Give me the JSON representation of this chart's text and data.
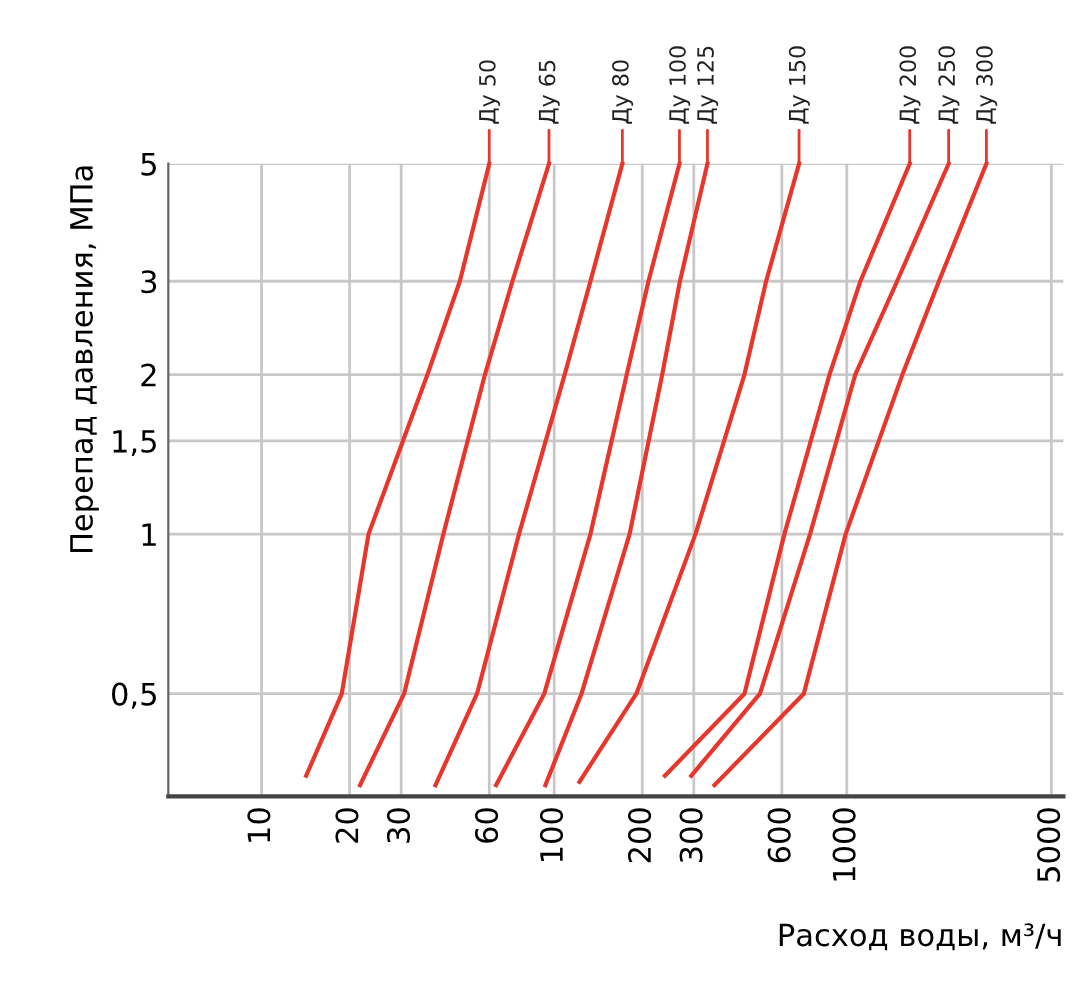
{
  "chart_data": {
    "type": "line",
    "xlabel": "Расход воды, м³/ч",
    "ylabel": "Перепад давления, МПа",
    "log": "xy",
    "xlim": [
      4.8,
      5500
    ],
    "ylim": [
      0.32,
      5
    ],
    "xticks": [
      10,
      20,
      30,
      60,
      100,
      200,
      300,
      600,
      1000,
      5000
    ],
    "yticks": [
      {
        "value": 0.5,
        "label": "0,5"
      },
      1,
      {
        "value": 1.5,
        "label": "1,5"
      },
      2,
      3,
      5
    ],
    "grid": true,
    "legend": false,
    "line_style": "solid",
    "series": [
      {
        "name": "Ду 50",
        "color": "#e8362c",
        "x": [
          14.2,
          18.8,
          23.2,
          36.9,
          47.6,
          60
        ],
        "values": [
          0.35,
          0.5,
          1,
          2,
          3,
          5
        ]
      },
      {
        "name": "Ду 65",
        "color": "#e8362c",
        "x": [
          21.7,
          30.7,
          41.8,
          58,
          72,
          96
        ],
        "values": [
          0.336,
          0.5,
          1,
          2,
          3,
          5
        ]
      },
      {
        "name": "Ду 80",
        "color": "#e8362c",
        "x": [
          39.3,
          54.5,
          75.8,
          108.6,
          133,
          171
        ],
        "values": [
          0.336,
          0.5,
          1,
          2,
          3,
          5
        ]
      },
      {
        "name": "Ду 100",
        "color": "#e8362c",
        "x": [
          63.3,
          92.5,
          133,
          177,
          210,
          268
        ],
        "values": [
          0.336,
          0.5,
          1,
          2,
          3,
          5
        ]
      },
      {
        "name": "Ду 125",
        "color": "#e8362c",
        "x": [
          93.3,
          124,
          181,
          234,
          269,
          334
        ],
        "values": [
          0.336,
          0.5,
          1,
          2,
          3,
          5
        ]
      },
      {
        "name": "Ду 150",
        "color": "#e8362c",
        "x": [
          122,
          191,
          304,
          447,
          530,
          687
        ],
        "values": [
          0.341,
          0.5,
          1,
          2,
          3,
          5
        ]
      },
      {
        "name": "Ду 200",
        "color": "#e8362c",
        "x": [
          239,
          447,
          612,
          873,
          1113,
          1641
        ],
        "values": [
          0.35,
          0.5,
          1,
          2,
          3,
          5
        ]
      },
      {
        "name": "Ду 250",
        "color": "#e8362c",
        "x": [
          294,
          505,
          749,
          1069,
          1486,
          2229
        ],
        "values": [
          0.35,
          0.5,
          1,
          2,
          3,
          5
        ]
      },
      {
        "name": "Ду 300",
        "color": "#e8362c",
        "x": [
          353,
          713,
          991,
          1549,
          2065,
          3000
        ],
        "values": [
          0.336,
          0.5,
          1,
          2,
          3,
          5
        ]
      }
    ]
  }
}
